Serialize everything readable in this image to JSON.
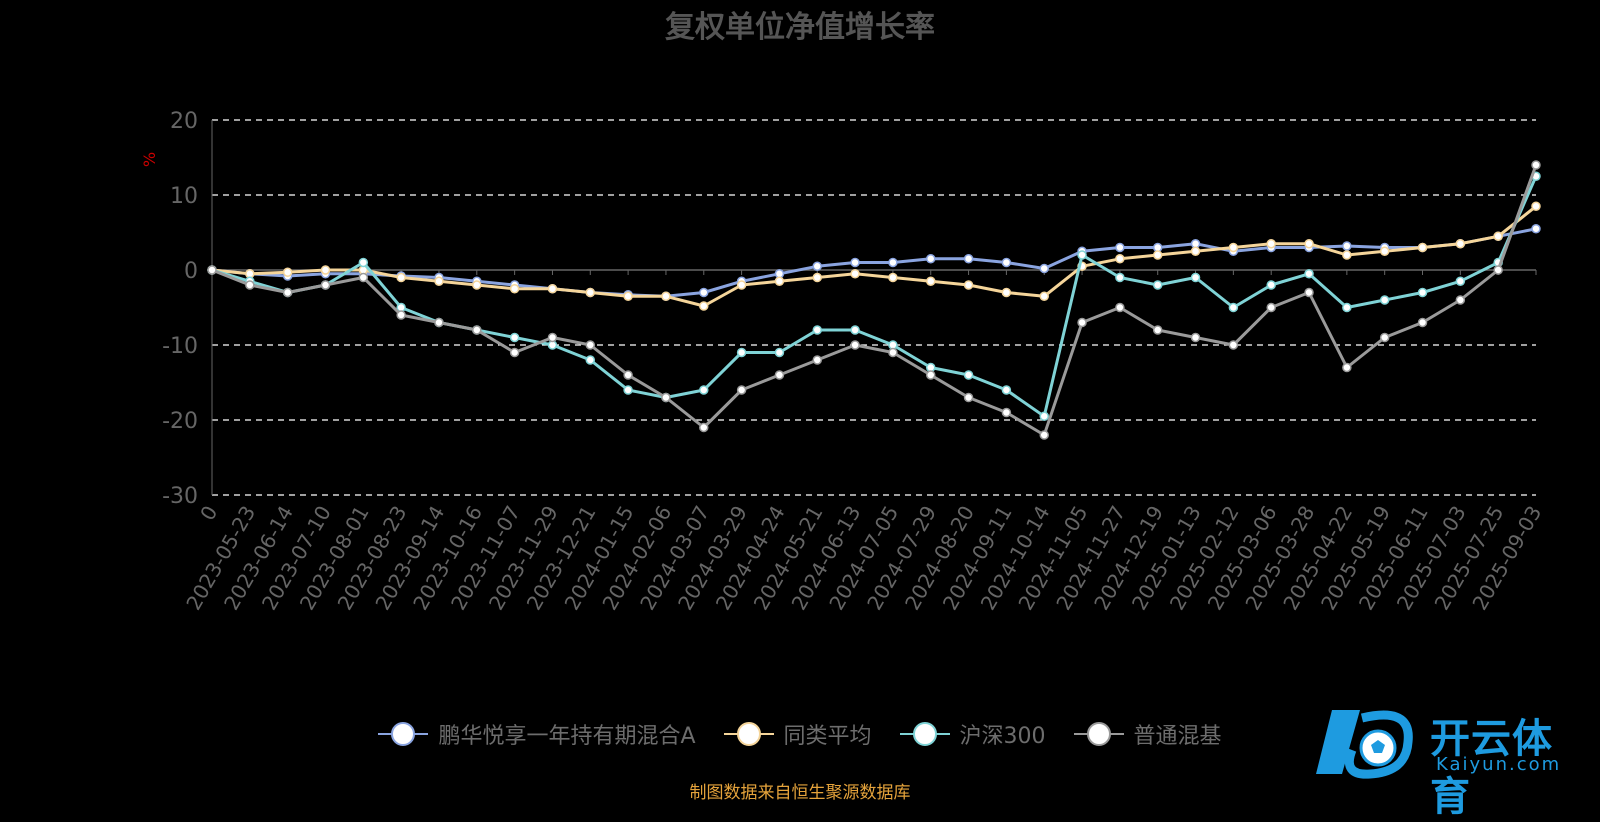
{
  "header": {
    "title": "复权单位净值增长率"
  },
  "source_note": "制图数据来自恒生聚源数据库",
  "watermark": {
    "brand_cn": "开云体育",
    "brand_en": "Kaiyun.com",
    "logo": "kaiyun-k-soccer-logo"
  },
  "colors": {
    "fund": "#8aa4e0",
    "category_avg": "#f5d59a",
    "csi300": "#7fd3d6",
    "hybrid": "#9a9a9a",
    "grid": "#ffffff",
    "axis_text": "#666666",
    "ylabel": "#cc0000"
  },
  "chart_data": {
    "type": "line",
    "title": "复权单位净值增长率",
    "ylabel": "%",
    "ylim": [
      -30,
      20
    ],
    "yticks": [
      20,
      10,
      0,
      -10,
      -20,
      -30
    ],
    "grid": true,
    "legend_position": "bottom",
    "xtick_labels": [
      "0",
      "2023-05-23",
      "2023-06-14",
      "2023-07-10",
      "2023-08-01",
      "2023-08-23",
      "2023-09-14",
      "2023-10-16",
      "2023-11-07",
      "2023-11-29",
      "2023-12-21",
      "2024-01-15",
      "2024-02-06",
      "2024-03-07",
      "2024-03-29",
      "2024-04-24",
      "2024-05-21",
      "2024-06-13",
      "2024-07-05",
      "2024-07-29",
      "2024-08-20",
      "2024-09-11",
      "2024-10-14",
      "2024-11-05",
      "2024-11-27",
      "2024-12-19",
      "2025-01-13",
      "2025-02-12",
      "2025-03-06",
      "2025-03-28",
      "2025-04-22",
      "2025-05-19",
      "2025-06-11",
      "2025-07-03",
      "2025-07-25",
      "2025-09-03"
    ],
    "x": [
      0,
      1,
      2,
      3,
      4,
      5,
      6,
      7,
      8,
      9,
      10,
      11,
      12,
      13,
      14,
      15,
      16,
      17,
      18,
      19,
      20,
      21,
      22,
      23,
      24,
      25,
      26,
      27,
      28,
      29,
      30,
      31,
      32,
      33,
      34,
      35
    ],
    "series": [
      {
        "name": "鹏华悦享一年持有期混合A",
        "color_key": "fund",
        "values": [
          0,
          -0.5,
          -0.8,
          -0.5,
          -0.5,
          -0.8,
          -1,
          -1.5,
          -2,
          -2.5,
          -3,
          -3.3,
          -3.5,
          -3,
          -1.5,
          -0.5,
          0.5,
          1,
          1,
          1.5,
          1.5,
          1,
          0.2,
          2.5,
          3,
          3,
          3.5,
          2.5,
          3,
          3,
          3.2,
          3,
          3,
          3.5,
          4.5,
          5.5
        ]
      },
      {
        "name": "同类平均",
        "color_key": "category_avg",
        "values": [
          0,
          -0.5,
          -0.3,
          0,
          0,
          -1,
          -1.5,
          -2,
          -2.5,
          -2.5,
          -3,
          -3.5,
          -3.5,
          -4.8,
          -2,
          -1.5,
          -1,
          -0.5,
          -1,
          -1.5,
          -2,
          -3,
          -3.5,
          0.5,
          1.5,
          2,
          2.5,
          3,
          3.5,
          3.5,
          2,
          2.5,
          3,
          3.5,
          4.5,
          8.5
        ]
      },
      {
        "name": "沪深300",
        "color_key": "csi300",
        "values": [
          0,
          -1.5,
          -3,
          -2,
          1,
          -5,
          -7,
          -8,
          -9,
          -10,
          -12,
          -16,
          -17,
          -16,
          -11,
          -11,
          -8,
          -8,
          -10,
          -13,
          -14,
          -16,
          -19.5,
          2,
          -1,
          -2,
          -1,
          -5,
          -2,
          -0.5,
          -5,
          -4,
          -3,
          -1.5,
          1,
          12.5
        ]
      },
      {
        "name": "普通混基",
        "color_key": "hybrid",
        "values": [
          0,
          -2,
          -3,
          -2,
          -1,
          -6,
          -7,
          -8,
          -11,
          -9,
          -10,
          -14,
          -17,
          -21,
          -16,
          -14,
          -12,
          -10,
          -11,
          -14,
          -17,
          -19,
          -22,
          -7,
          -5,
          -8,
          -9,
          -10,
          -5,
          -3,
          -13,
          -9,
          -7,
          -4,
          0,
          14
        ]
      }
    ]
  }
}
